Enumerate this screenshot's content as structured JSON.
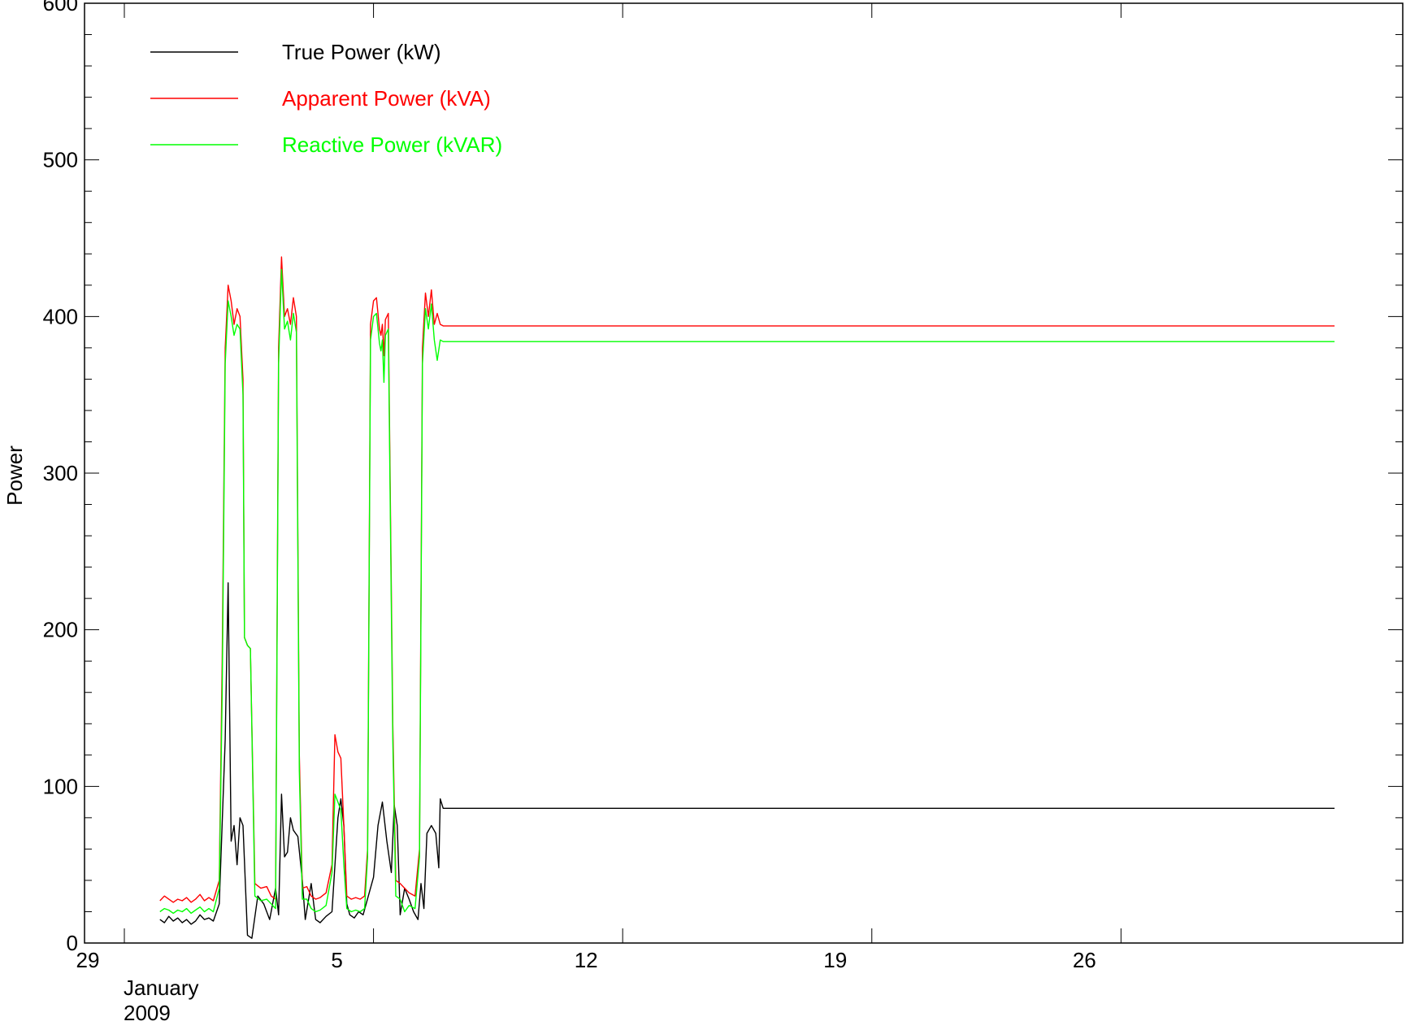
{
  "chart_data": {
    "type": "line",
    "title": "",
    "xlabel": "",
    "ylabel": "Power",
    "ylim": [
      0,
      600
    ],
    "xlim": [
      "2008-12-29T00:00",
      "2009-02-01T12:00"
    ],
    "y_ticks": [
      0,
      100,
      200,
      300,
      400,
      500,
      600
    ],
    "x_ticks": [
      {
        "date": "2008-12-29",
        "label": "29"
      },
      {
        "date": "2009-01-05",
        "label": "5"
      },
      {
        "date": "2009-01-12",
        "label": "12"
      },
      {
        "date": "2009-01-19",
        "label": "19"
      },
      {
        "date": "2009-01-26",
        "label": "26"
      }
    ],
    "x_sublabels": [
      "January",
      "2009"
    ],
    "legend_position": "top-left",
    "grid": false,
    "series": [
      {
        "name": "True Power (kW)",
        "color": "#000000",
        "points": [
          [
            "2008-12-30T00:00",
            15
          ],
          [
            "2008-12-30T03:00",
            13
          ],
          [
            "2008-12-30T06:00",
            17
          ],
          [
            "2008-12-30T09:00",
            14
          ],
          [
            "2008-12-30T12:00",
            16
          ],
          [
            "2008-12-30T15:00",
            13
          ],
          [
            "2008-12-30T18:00",
            15
          ],
          [
            "2008-12-30T21:00",
            12
          ],
          [
            "2008-12-31T00:00",
            14
          ],
          [
            "2008-12-31T03:00",
            18
          ],
          [
            "2008-12-31T06:00",
            15
          ],
          [
            "2008-12-31T09:00",
            16
          ],
          [
            "2008-12-31T12:00",
            14
          ],
          [
            "2008-12-31T16:00",
            25
          ],
          [
            "2008-12-31T20:00",
            130
          ],
          [
            "2008-12-31T22:00",
            230
          ],
          [
            "2009-01-01T00:00",
            65
          ],
          [
            "2009-01-01T02:00",
            75
          ],
          [
            "2009-01-01T04:00",
            50
          ],
          [
            "2009-01-01T06:00",
            80
          ],
          [
            "2009-01-01T08:00",
            75
          ],
          [
            "2009-01-01T11:00",
            5
          ],
          [
            "2009-01-01T14:00",
            3
          ],
          [
            "2009-01-01T18:00",
            30
          ],
          [
            "2009-01-01T22:00",
            25
          ],
          [
            "2009-01-02T02:00",
            15
          ],
          [
            "2009-01-02T06:00",
            35
          ],
          [
            "2009-01-02T08:00",
            18
          ],
          [
            "2009-01-02T10:00",
            95
          ],
          [
            "2009-01-02T12:00",
            55
          ],
          [
            "2009-01-02T14:00",
            58
          ],
          [
            "2009-01-02T16:00",
            80
          ],
          [
            "2009-01-02T18:00",
            72
          ],
          [
            "2009-01-02T21:00",
            68
          ],
          [
            "2009-01-03T00:00",
            40
          ],
          [
            "2009-01-03T02:00",
            15
          ],
          [
            "2009-01-03T06:00",
            38
          ],
          [
            "2009-01-03T09:00",
            15
          ],
          [
            "2009-01-03T12:00",
            13
          ],
          [
            "2009-01-03T16:00",
            17
          ],
          [
            "2009-01-03T20:00",
            20
          ],
          [
            "2009-01-04T00:00",
            80
          ],
          [
            "2009-01-04T02:00",
            92
          ],
          [
            "2009-01-04T04:00",
            75
          ],
          [
            "2009-01-04T06:00",
            25
          ],
          [
            "2009-01-04T08:00",
            18
          ],
          [
            "2009-01-04T11:00",
            16
          ],
          [
            "2009-01-04T14:00",
            20
          ],
          [
            "2009-01-04T17:00",
            18
          ],
          [
            "2009-01-05T00:00",
            42
          ],
          [
            "2009-01-05T03:00",
            75
          ],
          [
            "2009-01-05T06:00",
            90
          ],
          [
            "2009-01-05T09:00",
            65
          ],
          [
            "2009-01-05T12:00",
            45
          ],
          [
            "2009-01-05T14:00",
            88
          ],
          [
            "2009-01-05T16:00",
            75
          ],
          [
            "2009-01-05T18:00",
            18
          ],
          [
            "2009-01-05T21:00",
            35
          ],
          [
            "2009-01-06T00:00",
            28
          ],
          [
            "2009-01-06T03:00",
            20
          ],
          [
            "2009-01-06T06:00",
            15
          ],
          [
            "2009-01-06T08:00",
            38
          ],
          [
            "2009-01-06T10:00",
            22
          ],
          [
            "2009-01-06T12:00",
            70
          ],
          [
            "2009-01-06T15:00",
            75
          ],
          [
            "2009-01-06T18:00",
            70
          ],
          [
            "2009-01-06T20:00",
            48
          ],
          [
            "2009-01-06T21:00",
            92
          ],
          [
            "2009-01-06T23:00",
            86
          ],
          [
            "2009-02-01T00:00",
            86
          ]
        ]
      },
      {
        "name": "Apparent Power (kVA)",
        "color": "#ff0000",
        "points": [
          [
            "2008-12-30T00:00",
            27
          ],
          [
            "2008-12-30T03:00",
            30
          ],
          [
            "2008-12-30T06:00",
            28
          ],
          [
            "2008-12-30T09:00",
            26
          ],
          [
            "2008-12-30T12:00",
            28
          ],
          [
            "2008-12-30T15:00",
            27
          ],
          [
            "2008-12-30T18:00",
            29
          ],
          [
            "2008-12-30T21:00",
            26
          ],
          [
            "2008-12-31T00:00",
            28
          ],
          [
            "2008-12-31T03:00",
            31
          ],
          [
            "2008-12-31T06:00",
            27
          ],
          [
            "2008-12-31T09:00",
            29
          ],
          [
            "2008-12-31T12:00",
            27
          ],
          [
            "2008-12-31T16:00",
            40
          ],
          [
            "2008-12-31T18:00",
            180
          ],
          [
            "2008-12-31T20:00",
            380
          ],
          [
            "2008-12-31T22:00",
            420
          ],
          [
            "2009-01-01T00:00",
            410
          ],
          [
            "2009-01-01T02:00",
            395
          ],
          [
            "2009-01-01T04:00",
            405
          ],
          [
            "2009-01-01T06:00",
            400
          ],
          [
            "2009-01-01T08:00",
            360
          ],
          [
            "2009-01-01T09:00",
            195
          ],
          [
            "2009-01-01T11:00",
            190
          ],
          [
            "2009-01-01T13:00",
            188
          ],
          [
            "2009-01-01T16:00",
            38
          ],
          [
            "2009-01-01T20:00",
            35
          ],
          [
            "2009-01-02T00:00",
            36
          ],
          [
            "2009-01-02T03:00",
            30
          ],
          [
            "2009-01-02T06:00",
            28
          ],
          [
            "2009-01-02T08:00",
            380
          ],
          [
            "2009-01-02T10:00",
            438
          ],
          [
            "2009-01-02T12:00",
            400
          ],
          [
            "2009-01-02T14:00",
            405
          ],
          [
            "2009-01-02T16:00",
            395
          ],
          [
            "2009-01-02T18:00",
            412
          ],
          [
            "2009-01-02T20:00",
            400
          ],
          [
            "2009-01-02T22:00",
            120
          ],
          [
            "2009-01-03T00:00",
            35
          ],
          [
            "2009-01-03T03:00",
            36
          ],
          [
            "2009-01-03T06:00",
            30
          ],
          [
            "2009-01-03T09:00",
            28
          ],
          [
            "2009-01-03T12:00",
            29
          ],
          [
            "2009-01-03T16:00",
            32
          ],
          [
            "2009-01-03T20:00",
            50
          ],
          [
            "2009-01-03T22:00",
            133
          ],
          [
            "2009-01-04T00:00",
            122
          ],
          [
            "2009-01-04T02:00",
            118
          ],
          [
            "2009-01-04T04:00",
            75
          ],
          [
            "2009-01-04T06:00",
            30
          ],
          [
            "2009-01-04T09:00",
            28
          ],
          [
            "2009-01-04T12:00",
            29
          ],
          [
            "2009-01-04T15:00",
            28
          ],
          [
            "2009-01-04T18:00",
            30
          ],
          [
            "2009-01-04T20:00",
            60
          ],
          [
            "2009-01-04T22:00",
            395
          ],
          [
            "2009-01-05T00:00",
            410
          ],
          [
            "2009-01-05T02:00",
            412
          ],
          [
            "2009-01-05T04:00",
            392
          ],
          [
            "2009-01-05T05:00",
            388
          ],
          [
            "2009-01-05T06:00",
            395
          ],
          [
            "2009-01-05T07:00",
            375
          ],
          [
            "2009-01-05T08:00",
            398
          ],
          [
            "2009-01-05T10:00",
            402
          ],
          [
            "2009-01-05T13:00",
            140
          ],
          [
            "2009-01-05T15:00",
            40
          ],
          [
            "2009-01-05T18:00",
            38
          ],
          [
            "2009-01-05T21:00",
            35
          ],
          [
            "2009-01-06T00:00",
            32
          ],
          [
            "2009-01-06T04:00",
            30
          ],
          [
            "2009-01-06T07:00",
            60
          ],
          [
            "2009-01-06T09:00",
            380
          ],
          [
            "2009-01-06T11:00",
            415
          ],
          [
            "2009-01-06T13:00",
            400
          ],
          [
            "2009-01-06T15:00",
            417
          ],
          [
            "2009-01-06T17:00",
            395
          ],
          [
            "2009-01-06T19:00",
            402
          ],
          [
            "2009-01-06T21:00",
            395
          ],
          [
            "2009-01-06T23:00",
            394
          ],
          [
            "2009-02-01T00:00",
            394
          ]
        ]
      },
      {
        "name": "Reactive Power (kVAR)",
        "color": "#00ff00",
        "points": [
          [
            "2008-12-30T00:00",
            20
          ],
          [
            "2008-12-30T03:00",
            22
          ],
          [
            "2008-12-30T06:00",
            21
          ],
          [
            "2008-12-30T09:00",
            19
          ],
          [
            "2008-12-30T12:00",
            21
          ],
          [
            "2008-12-30T15:00",
            20
          ],
          [
            "2008-12-30T18:00",
            22
          ],
          [
            "2008-12-30T21:00",
            19
          ],
          [
            "2008-12-31T00:00",
            21
          ],
          [
            "2008-12-31T03:00",
            23
          ],
          [
            "2008-12-31T06:00",
            20
          ],
          [
            "2008-12-31T09:00",
            22
          ],
          [
            "2008-12-31T12:00",
            20
          ],
          [
            "2008-12-31T16:00",
            35
          ],
          [
            "2008-12-31T18:00",
            160
          ],
          [
            "2008-12-31T20:00",
            370
          ],
          [
            "2008-12-31T22:00",
            410
          ],
          [
            "2009-01-01T00:00",
            400
          ],
          [
            "2009-01-01T02:00",
            388
          ],
          [
            "2009-01-01T04:00",
            395
          ],
          [
            "2009-01-01T06:00",
            392
          ],
          [
            "2009-01-01T08:00",
            350
          ],
          [
            "2009-01-01T09:00",
            195
          ],
          [
            "2009-01-01T11:00",
            190
          ],
          [
            "2009-01-01T13:00",
            188
          ],
          [
            "2009-01-01T16:00",
            30
          ],
          [
            "2009-01-01T20:00",
            27
          ],
          [
            "2009-01-02T00:00",
            28
          ],
          [
            "2009-01-02T03:00",
            25
          ],
          [
            "2009-01-02T06:00",
            22
          ],
          [
            "2009-01-02T08:00",
            370
          ],
          [
            "2009-01-02T10:00",
            430
          ],
          [
            "2009-01-02T12:00",
            392
          ],
          [
            "2009-01-02T14:00",
            397
          ],
          [
            "2009-01-02T16:00",
            385
          ],
          [
            "2009-01-02T18:00",
            402
          ],
          [
            "2009-01-02T20:00",
            390
          ],
          [
            "2009-01-02T22:00",
            110
          ],
          [
            "2009-01-03T00:00",
            28
          ],
          [
            "2009-01-03T03:00",
            28
          ],
          [
            "2009-01-03T06:00",
            22
          ],
          [
            "2009-01-03T09:00",
            20
          ],
          [
            "2009-01-03T12:00",
            21
          ],
          [
            "2009-01-03T16:00",
            24
          ],
          [
            "2009-01-03T20:00",
            45
          ],
          [
            "2009-01-03T22:00",
            95
          ],
          [
            "2009-01-04T00:00",
            90
          ],
          [
            "2009-01-04T02:00",
            85
          ],
          [
            "2009-01-04T04:00",
            50
          ],
          [
            "2009-01-04T06:00",
            22
          ],
          [
            "2009-01-04T09:00",
            20
          ],
          [
            "2009-01-04T12:00",
            21
          ],
          [
            "2009-01-04T15:00",
            20
          ],
          [
            "2009-01-04T18:00",
            22
          ],
          [
            "2009-01-04T20:00",
            55
          ],
          [
            "2009-01-04T22:00",
            385
          ],
          [
            "2009-01-05T00:00",
            400
          ],
          [
            "2009-01-05T02:00",
            402
          ],
          [
            "2009-01-05T04:00",
            383
          ],
          [
            "2009-01-05T05:00",
            378
          ],
          [
            "2009-01-05T06:00",
            385
          ],
          [
            "2009-01-05T07:00",
            358
          ],
          [
            "2009-01-05T08:00",
            388
          ],
          [
            "2009-01-05T10:00",
            392
          ],
          [
            "2009-01-05T13:00",
            130
          ],
          [
            "2009-01-05T15:00",
            30
          ],
          [
            "2009-01-05T18:00",
            28
          ],
          [
            "2009-01-05T21:00",
            20
          ],
          [
            "2009-01-06T00:00",
            24
          ],
          [
            "2009-01-06T04:00",
            22
          ],
          [
            "2009-01-06T07:00",
            55
          ],
          [
            "2009-01-06T09:00",
            370
          ],
          [
            "2009-01-06T11:00",
            405
          ],
          [
            "2009-01-06T13:00",
            392
          ],
          [
            "2009-01-06T15:00",
            408
          ],
          [
            "2009-01-06T17:00",
            385
          ],
          [
            "2009-01-06T19:00",
            372
          ],
          [
            "2009-01-06T21:00",
            385
          ],
          [
            "2009-01-06T23:00",
            384
          ],
          [
            "2009-02-01T00:00",
            384
          ]
        ]
      }
    ]
  }
}
